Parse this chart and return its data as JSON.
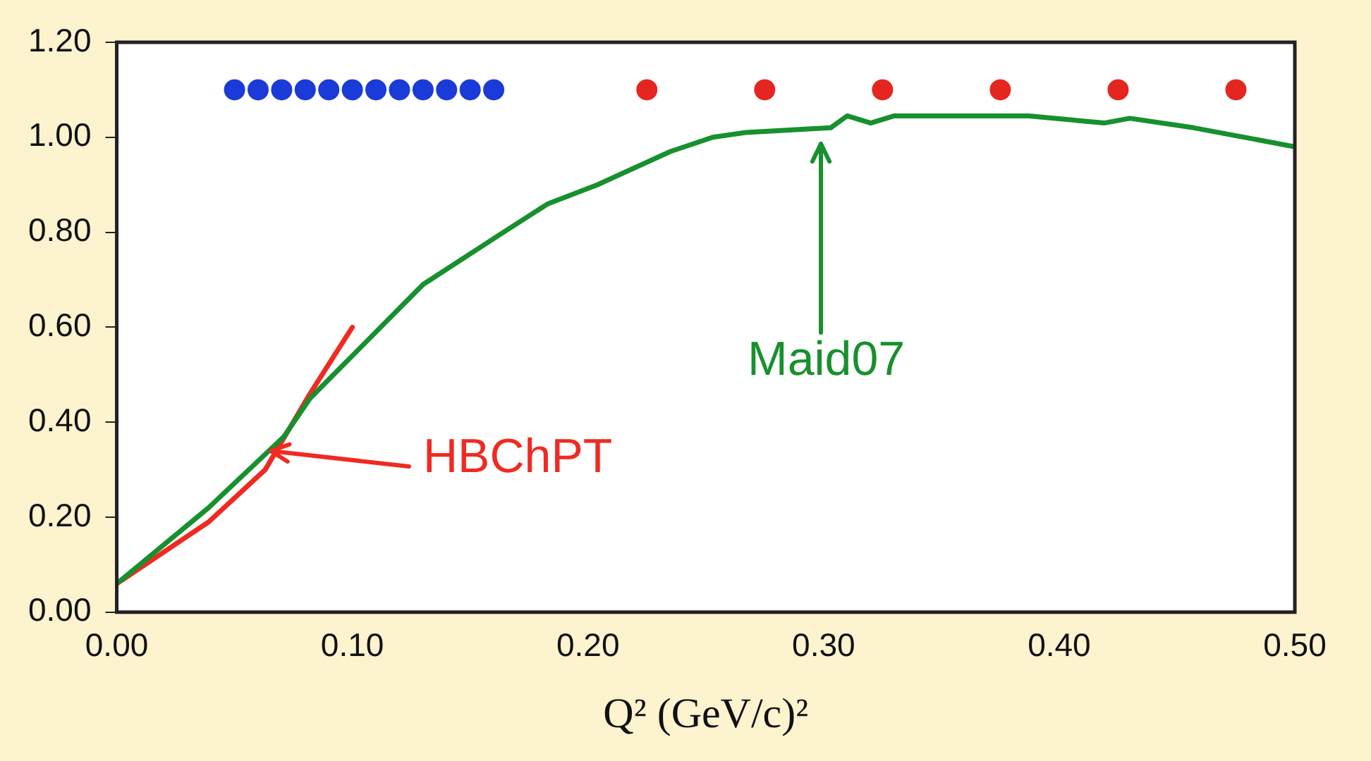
{
  "chart_data": {
    "type": "line",
    "xlabel": "Q² (GeV/c)²",
    "xlim": [
      0,
      0.5
    ],
    "xticks": [
      {
        "value": 0,
        "label": "0.00"
      },
      {
        "value": 0.1,
        "label": "0.10"
      },
      {
        "value": 0.2,
        "label": "0.20"
      },
      {
        "value": 0.3,
        "label": "0.30"
      },
      {
        "value": 0.4,
        "label": "0.40"
      },
      {
        "value": 0.5,
        "label": "0.50"
      }
    ],
    "ylim": [
      0,
      1.2
    ],
    "yticks": [
      {
        "value": 0,
        "label": "0.00"
      },
      {
        "value": 0.2,
        "label": "0.20"
      },
      {
        "value": 0.4,
        "label": "0.40"
      },
      {
        "value": 0.6,
        "label": "0.60"
      },
      {
        "value": 0.8,
        "label": "0.80"
      },
      {
        "value": 1,
        "label": "1.00"
      },
      {
        "value": 1.2,
        "label": "1.20"
      }
    ],
    "grid": false,
    "legend": false,
    "series": [
      {
        "color": "#17902e",
        "marker": "none",
        "x": [
          0,
          0.039,
          0.071,
          0.082,
          0.1,
          0.13,
          0.161,
          0.183,
          0.204,
          0.235,
          0.253,
          0.267,
          0.303,
          0.31,
          0.32,
          0.33,
          0.387,
          0.419,
          0.43,
          0.457,
          0.5
        ],
        "values": [
          0.06,
          0.22,
          0.37,
          0.45,
          0.54,
          0.69,
          0.79,
          0.86,
          0.9,
          0.97,
          1.0,
          1.01,
          1.02,
          1.045,
          1.03,
          1.045,
          1.045,
          1.03,
          1.04,
          1.02,
          0.98
        ]
      },
      {
        "type": "line",
        "color": "#f02a22",
        "marker": "none",
        "x": [
          0,
          0.039,
          0.063,
          0.082,
          0.1
        ],
        "values": [
          0.06,
          0.19,
          0.3,
          0.46,
          0.6
        ]
      },
      {
        "type": "scatter",
        "color": "#1b3bd8",
        "marker": "circle",
        "x": [
          0.05,
          0.06,
          0.07,
          0.08,
          0.09,
          0.1,
          0.11,
          0.12,
          0.13,
          0.14,
          0.15,
          0.16
        ],
        "values": [
          1.1,
          1.1,
          1.1,
          1.1,
          1.1,
          1.1,
          1.1,
          1.1,
          1.1,
          1.1,
          1.1,
          1.1
        ]
      },
      {
        "type": "scatter",
        "color": "#e52620",
        "marker": "circle",
        "x": [
          0.225,
          0.275,
          0.325,
          0.375,
          0.425,
          0.475
        ],
        "values": [
          1.1,
          1.1,
          1.1,
          1.1,
          1.1,
          1.1
        ]
      }
    ],
    "annotations": [
      "HBChPT",
      "Maid07"
    ]
  }
}
